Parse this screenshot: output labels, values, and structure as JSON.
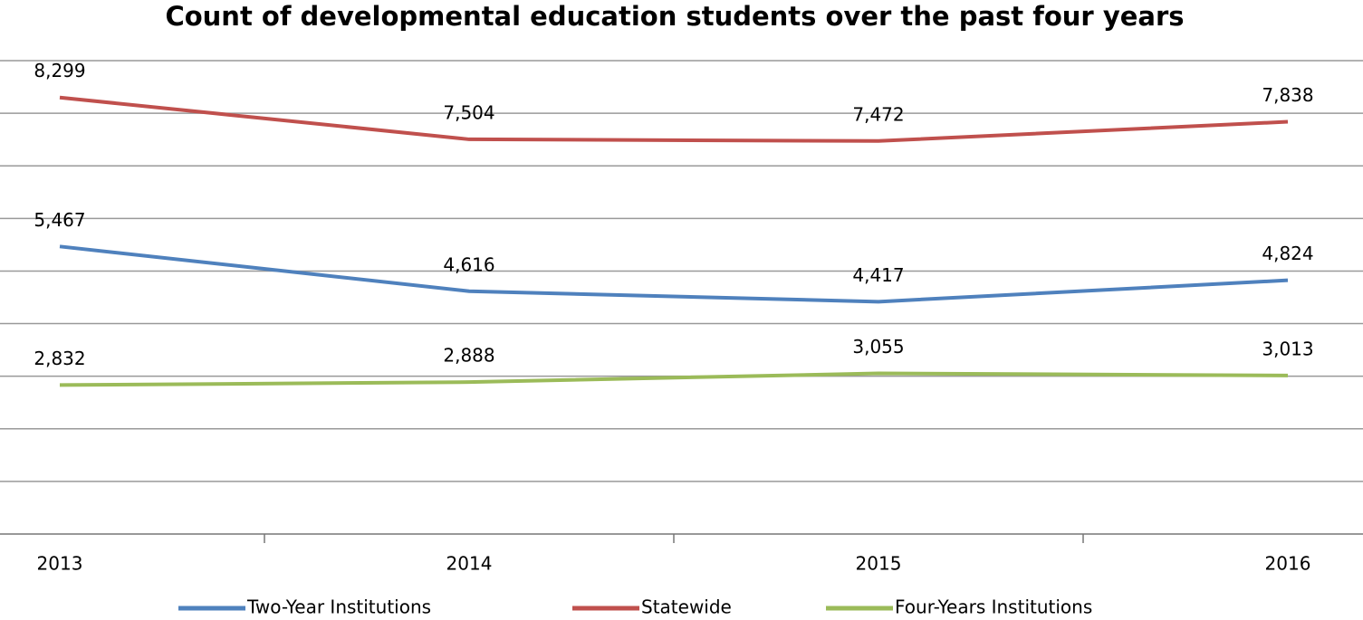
{
  "chart_data": {
    "type": "line",
    "title": "Count of developmental education students over the past four years",
    "categories": [
      "2013",
      "2014",
      "2015",
      "2016"
    ],
    "series": [
      {
        "name": "Two-Year Institutions",
        "color": "#4f81bd",
        "values": [
          5467,
          4616,
          4417,
          4824
        ],
        "value_labels": [
          "5,467",
          "4,616",
          "4,417",
          "4,824"
        ]
      },
      {
        "name": "Statewide",
        "color": "#c0504d",
        "values": [
          8299,
          7504,
          7472,
          7838
        ],
        "value_labels": [
          "8,299",
          "7,504",
          "7,472",
          "7,838"
        ]
      },
      {
        "name": "Four-Years Institutions",
        "color": "#9bbb59",
        "values": [
          2832,
          2888,
          3055,
          3013
        ],
        "value_labels": [
          "2,832",
          "2,888",
          "3,055",
          "3,013"
        ]
      }
    ],
    "ylim": [
      0,
      9000
    ],
    "yticks": [
      0,
      1000,
      2000,
      3000,
      4000,
      5000,
      6000,
      7000,
      8000,
      9000
    ],
    "grid": true,
    "legend": "bottom"
  }
}
